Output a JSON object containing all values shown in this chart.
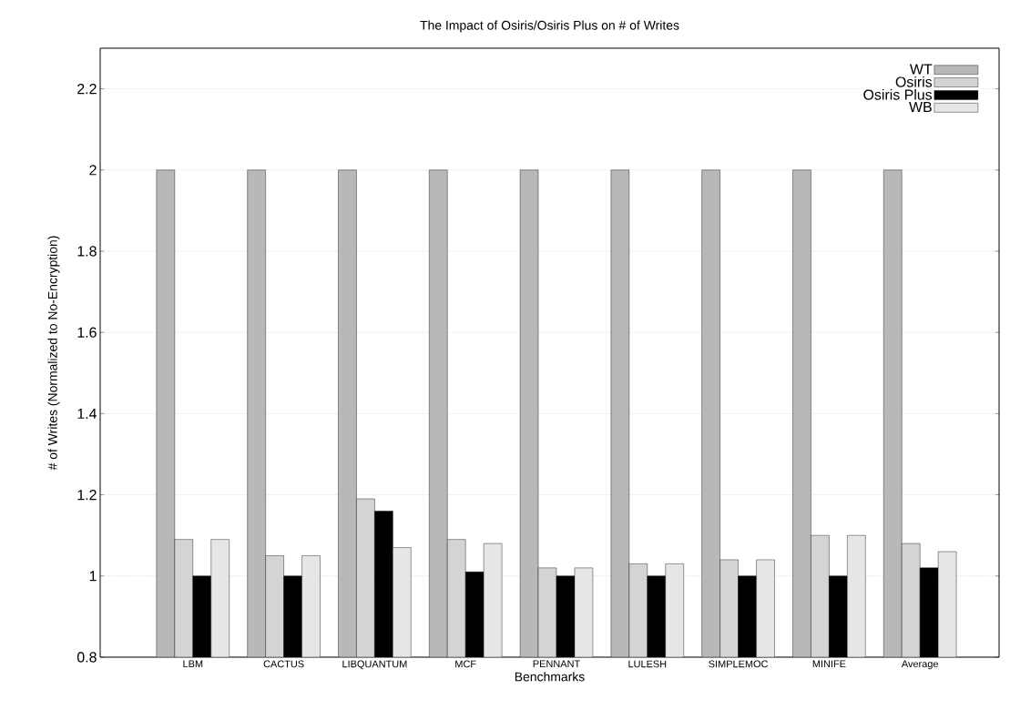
{
  "chart_data": {
    "type": "bar",
    "title": "The Impact of Osiris/Osiris Plus on # of Writes",
    "xlabel": "Benchmarks",
    "ylabel": "# of Writes (Normalized to No-Encryption)",
    "categories": [
      "LBM",
      "CACTUS",
      "LIBQUANTUM",
      "MCF",
      "PENNANT",
      "LULESH",
      "SIMPLEMOC",
      "MINIFE",
      "Average"
    ],
    "series": [
      {
        "name": "WT",
        "color": "#b8b8b8",
        "values": [
          2,
          2,
          2,
          2,
          2,
          2,
          2,
          2,
          2
        ]
      },
      {
        "name": "Osiris",
        "color": "#d4d4d4",
        "values": [
          1.09,
          1.05,
          1.19,
          1.09,
          1.02,
          1.03,
          1.04,
          1.1,
          1.08
        ]
      },
      {
        "name": "Osiris Plus",
        "color": "#000000",
        "values": [
          1.0,
          1.0,
          1.16,
          1.01,
          1.0,
          1.0,
          1.0,
          1.0,
          1.02
        ]
      },
      {
        "name": "WB",
        "color": "#e6e6e6",
        "values": [
          1.09,
          1.05,
          1.07,
          1.08,
          1.02,
          1.03,
          1.04,
          1.1,
          1.06
        ]
      }
    ],
    "ylim": [
      0.8,
      2.3
    ],
    "yticks": [
      0.8,
      {
        "value": 1,
        "label": "1"
      },
      1.2,
      1.4,
      1.6,
      1.8,
      {
        "value": 2,
        "label": "2"
      },
      2.2
    ],
    "grid": "y",
    "legend": "top right"
  }
}
